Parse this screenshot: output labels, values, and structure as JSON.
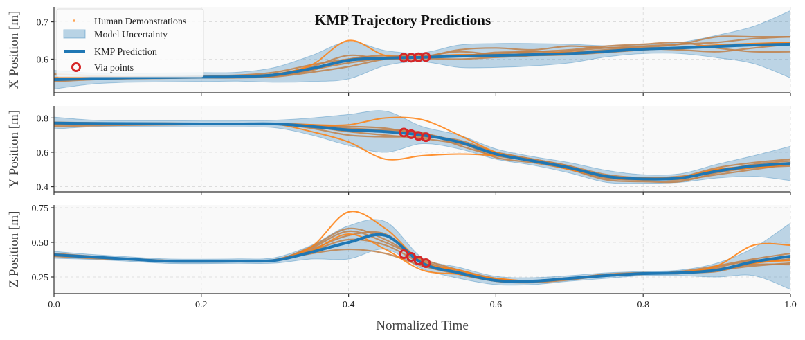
{
  "chart_data": {
    "type": "line",
    "title": "KMP Trajectory Predictions",
    "xlabel": "Normalized Time",
    "xlim": [
      0,
      1
    ],
    "x_ticks": [
      "0.0",
      "0.2",
      "0.4",
      "0.6",
      "0.8",
      "1.0"
    ],
    "x_tick_values": [
      0,
      0.2,
      0.4,
      0.6,
      0.8,
      1.0
    ],
    "legend": {
      "placement": "top-left",
      "entries": [
        "Human Demonstrations",
        "Model Uncertainty",
        "KMP Prediction",
        "Via points"
      ]
    },
    "colors": {
      "prediction": "#1f77b4",
      "uncertainty": "#1f77b4",
      "demo_light": "#ff7f0e",
      "demo_dark": "#c0804a",
      "via": "#d62728",
      "background": "#f9f9f9"
    },
    "x": [
      0,
      0.05,
      0.1,
      0.15,
      0.2,
      0.25,
      0.3,
      0.35,
      0.4,
      0.45,
      0.5,
      0.55,
      0.6,
      0.65,
      0.7,
      0.75,
      0.8,
      0.85,
      0.9,
      0.95,
      1.0
    ],
    "via_points_x": [
      0.475,
      0.485,
      0.495,
      0.505
    ],
    "panels": [
      {
        "ylabel": "X Position [m]",
        "ylim": [
          0.51,
          0.74
        ],
        "y_ticks": [
          "0.6",
          "0.7"
        ],
        "y_tick_values": [
          0.6,
          0.7
        ],
        "prediction": [
          0.545,
          0.548,
          0.55,
          0.551,
          0.552,
          0.553,
          0.558,
          0.575,
          0.597,
          0.603,
          0.605,
          0.608,
          0.61,
          0.612,
          0.615,
          0.621,
          0.627,
          0.63,
          0.634,
          0.638,
          0.64
        ],
        "uncertainty": [
          0.025,
          0.015,
          0.012,
          0.012,
          0.012,
          0.012,
          0.02,
          0.035,
          0.05,
          0.02,
          0.012,
          0.03,
          0.032,
          0.03,
          0.025,
          0.015,
          0.012,
          0.015,
          0.03,
          0.05,
          0.09
        ],
        "demos": [
          [
            0.55,
            0.552,
            0.553,
            0.553,
            0.554,
            0.556,
            0.56,
            0.58,
            0.61,
            0.6,
            0.605,
            0.625,
            0.63,
            0.625,
            0.635,
            0.63,
            0.632,
            0.64,
            0.66,
            0.66,
            0.66
          ],
          [
            0.545,
            0.546,
            0.548,
            0.55,
            0.552,
            0.553,
            0.555,
            0.57,
            0.6,
            0.61,
            0.606,
            0.61,
            0.615,
            0.62,
            0.618,
            0.625,
            0.628,
            0.625,
            0.62,
            0.63,
            0.64
          ],
          [
            0.54,
            0.545,
            0.548,
            0.549,
            0.55,
            0.55,
            0.553,
            0.565,
            0.58,
            0.6,
            0.602,
            0.6,
            0.605,
            0.61,
            0.622,
            0.63,
            0.635,
            0.64,
            0.645,
            0.655,
            0.66
          ],
          [
            0.56,
            0.556,
            0.552,
            0.552,
            0.555,
            0.557,
            0.565,
            0.585,
            0.6,
            0.605,
            0.604,
            0.608,
            0.618,
            0.62,
            0.625,
            0.635,
            0.64,
            0.645,
            0.63,
            0.62,
            0.62
          ],
          [
            0.548,
            0.55,
            0.551,
            0.552,
            0.553,
            0.553,
            0.555,
            0.572,
            0.59,
            0.602,
            0.607,
            0.62,
            0.612,
            0.61,
            0.612,
            0.618,
            0.625,
            0.63,
            0.635,
            0.64,
            0.645
          ]
        ],
        "demos_light": [
          [
            0.55,
            0.552,
            0.553,
            0.553,
            0.553,
            0.555,
            0.56,
            0.585,
            0.65,
            0.61,
            0.608,
            0.612,
            0.612,
            0.615,
            0.618,
            0.622,
            0.628,
            0.632,
            0.638,
            0.642,
            0.645
          ]
        ],
        "via_values": [
          0.604,
          0.604,
          0.605,
          0.606
        ]
      },
      {
        "ylabel": "Y Position [m]",
        "ylim": [
          0.37,
          0.87
        ],
        "y_ticks": [
          "0.4",
          "0.6",
          "0.8"
        ],
        "y_tick_values": [
          0.4,
          0.6,
          0.8
        ],
        "prediction": [
          0.77,
          0.768,
          0.767,
          0.766,
          0.765,
          0.765,
          0.765,
          0.75,
          0.73,
          0.72,
          0.7,
          0.66,
          0.59,
          0.55,
          0.51,
          0.46,
          0.445,
          0.45,
          0.49,
          0.52,
          0.535
        ],
        "uncertainty": [
          0.035,
          0.02,
          0.018,
          0.018,
          0.018,
          0.018,
          0.022,
          0.05,
          0.09,
          0.12,
          0.05,
          0.04,
          0.03,
          0.025,
          0.03,
          0.035,
          0.025,
          0.025,
          0.04,
          0.06,
          0.1
        ],
        "demos": [
          [
            0.76,
            0.762,
            0.763,
            0.763,
            0.764,
            0.765,
            0.768,
            0.76,
            0.74,
            0.73,
            0.715,
            0.64,
            0.58,
            0.55,
            0.5,
            0.45,
            0.44,
            0.455,
            0.51,
            0.54,
            0.56
          ],
          [
            0.75,
            0.755,
            0.758,
            0.76,
            0.762,
            0.763,
            0.765,
            0.74,
            0.7,
            0.69,
            0.69,
            0.67,
            0.6,
            0.56,
            0.52,
            0.47,
            0.45,
            0.44,
            0.47,
            0.5,
            0.53
          ],
          [
            0.775,
            0.772,
            0.77,
            0.77,
            0.768,
            0.768,
            0.766,
            0.755,
            0.75,
            0.74,
            0.7,
            0.66,
            0.57,
            0.54,
            0.5,
            0.44,
            0.43,
            0.43,
            0.48,
            0.51,
            0.52
          ],
          [
            0.765,
            0.766,
            0.766,
            0.766,
            0.766,
            0.766,
            0.766,
            0.75,
            0.72,
            0.7,
            0.68,
            0.65,
            0.6,
            0.56,
            0.52,
            0.455,
            0.44,
            0.45,
            0.5,
            0.52,
            0.54
          ],
          [
            0.77,
            0.77,
            0.768,
            0.767,
            0.766,
            0.765,
            0.764,
            0.745,
            0.73,
            0.72,
            0.71,
            0.66,
            0.59,
            0.55,
            0.51,
            0.46,
            0.45,
            0.46,
            0.49,
            0.53,
            0.55
          ]
        ],
        "demos_light": [
          [
            0.77,
            0.768,
            0.766,
            0.766,
            0.765,
            0.765,
            0.764,
            0.76,
            0.76,
            0.8,
            0.79,
            0.7,
            0.6,
            0.55,
            0.51,
            0.46,
            0.45,
            0.455,
            0.5,
            0.52,
            0.535
          ],
          [
            0.76,
            0.762,
            0.763,
            0.764,
            0.765,
            0.765,
            0.764,
            0.72,
            0.66,
            0.56,
            0.58,
            0.59,
            0.58,
            0.55,
            0.5,
            0.46,
            0.44,
            0.45,
            0.49,
            0.51,
            0.53
          ]
        ],
        "via_values": [
          0.715,
          0.705,
          0.695,
          0.688
        ]
      },
      {
        "ylabel": "Z Position [m]",
        "ylim": [
          0.13,
          0.77
        ],
        "y_ticks": [
          "0.25",
          "0.50",
          "0.75"
        ],
        "y_tick_values": [
          0.25,
          0.5,
          0.75
        ],
        "prediction": [
          0.41,
          0.395,
          0.38,
          0.365,
          0.363,
          0.365,
          0.37,
          0.43,
          0.5,
          0.55,
          0.35,
          0.28,
          0.225,
          0.22,
          0.24,
          0.26,
          0.275,
          0.28,
          0.3,
          0.36,
          0.4
        ],
        "uncertainty": [
          0.025,
          0.018,
          0.016,
          0.016,
          0.016,
          0.016,
          0.02,
          0.05,
          0.12,
          0.1,
          0.04,
          0.04,
          0.03,
          0.025,
          0.02,
          0.02,
          0.015,
          0.02,
          0.05,
          0.1,
          0.24
        ],
        "demos": [
          [
            0.42,
            0.4,
            0.383,
            0.37,
            0.365,
            0.366,
            0.375,
            0.46,
            0.58,
            0.5,
            0.38,
            0.3,
            0.24,
            0.22,
            0.24,
            0.27,
            0.28,
            0.28,
            0.32,
            0.37,
            0.37
          ],
          [
            0.41,
            0.39,
            0.378,
            0.365,
            0.363,
            0.364,
            0.37,
            0.44,
            0.52,
            0.48,
            0.35,
            0.28,
            0.22,
            0.21,
            0.23,
            0.26,
            0.27,
            0.29,
            0.33,
            0.38,
            0.42
          ],
          [
            0.4,
            0.385,
            0.375,
            0.362,
            0.36,
            0.362,
            0.37,
            0.42,
            0.45,
            0.42,
            0.33,
            0.27,
            0.22,
            0.215,
            0.235,
            0.265,
            0.278,
            0.282,
            0.31,
            0.34,
            0.34
          ],
          [
            0.415,
            0.398,
            0.382,
            0.368,
            0.364,
            0.366,
            0.372,
            0.47,
            0.6,
            0.52,
            0.37,
            0.29,
            0.23,
            0.22,
            0.24,
            0.26,
            0.275,
            0.28,
            0.29,
            0.35,
            0.38
          ],
          [
            0.405,
            0.392,
            0.38,
            0.366,
            0.362,
            0.364,
            0.37,
            0.45,
            0.55,
            0.56,
            0.36,
            0.27,
            0.225,
            0.22,
            0.24,
            0.265,
            0.28,
            0.275,
            0.3,
            0.33,
            0.35
          ]
        ],
        "demos_light": [
          [
            0.41,
            0.395,
            0.38,
            0.366,
            0.363,
            0.365,
            0.37,
            0.47,
            0.72,
            0.6,
            0.36,
            0.3,
            0.23,
            0.22,
            0.24,
            0.265,
            0.275,
            0.285,
            0.33,
            0.48,
            0.48
          ],
          [
            0.41,
            0.395,
            0.38,
            0.366,
            0.363,
            0.365,
            0.372,
            0.44,
            0.56,
            0.45,
            0.3,
            0.27,
            0.24,
            0.22,
            0.24,
            0.26,
            0.275,
            0.28,
            0.3,
            0.35,
            0.37
          ]
        ],
        "via_values": [
          0.415,
          0.395,
          0.37,
          0.35
        ]
      }
    ]
  }
}
